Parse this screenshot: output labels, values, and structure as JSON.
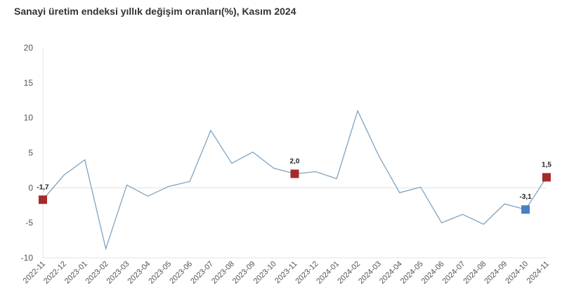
{
  "chart_data": {
    "type": "line",
    "title": "Sanayi üretim endeksi yıllık değişim oranları(%), Kasım 2024",
    "categories": [
      "2022-11",
      "2022-12",
      "2023-01",
      "2023-02",
      "2023-03",
      "2023-04",
      "2023-05",
      "2023-06",
      "2023-07",
      "2023-08",
      "2023-09",
      "2023-10",
      "2023-11",
      "2023-12",
      "2024-01",
      "2024-02",
      "2024-03",
      "2024-04",
      "2024-05",
      "2024-06",
      "2024-07",
      "2024-08",
      "2024-09",
      "2024-10",
      "2024-11"
    ],
    "values": [
      -1.7,
      1.8,
      4.0,
      -8.7,
      0.4,
      -1.2,
      0.2,
      0.9,
      8.2,
      3.5,
      5.1,
      2.8,
      2.0,
      2.3,
      1.3,
      11.0,
      4.6,
      -0.7,
      0.1,
      -5.0,
      -3.8,
      -5.2,
      -2.3,
      -3.1,
      1.5
    ],
    "ylim": [
      -10,
      20
    ],
    "yticks": [
      -10,
      -5,
      0,
      5,
      10,
      15,
      20
    ],
    "xlabel": "",
    "ylabel": "",
    "grid": "zero line only",
    "line_color": "#7fa3c0",
    "highlighted_points": [
      {
        "index": 0,
        "label": "-1,7",
        "color": "#a52a2a"
      },
      {
        "index": 12,
        "label": "2,0",
        "color": "#a52a2a"
      },
      {
        "index": 23,
        "label": "-3,1",
        "color": "#4a7fc1"
      },
      {
        "index": 24,
        "label": "1,5",
        "color": "#a52a2a"
      }
    ]
  }
}
